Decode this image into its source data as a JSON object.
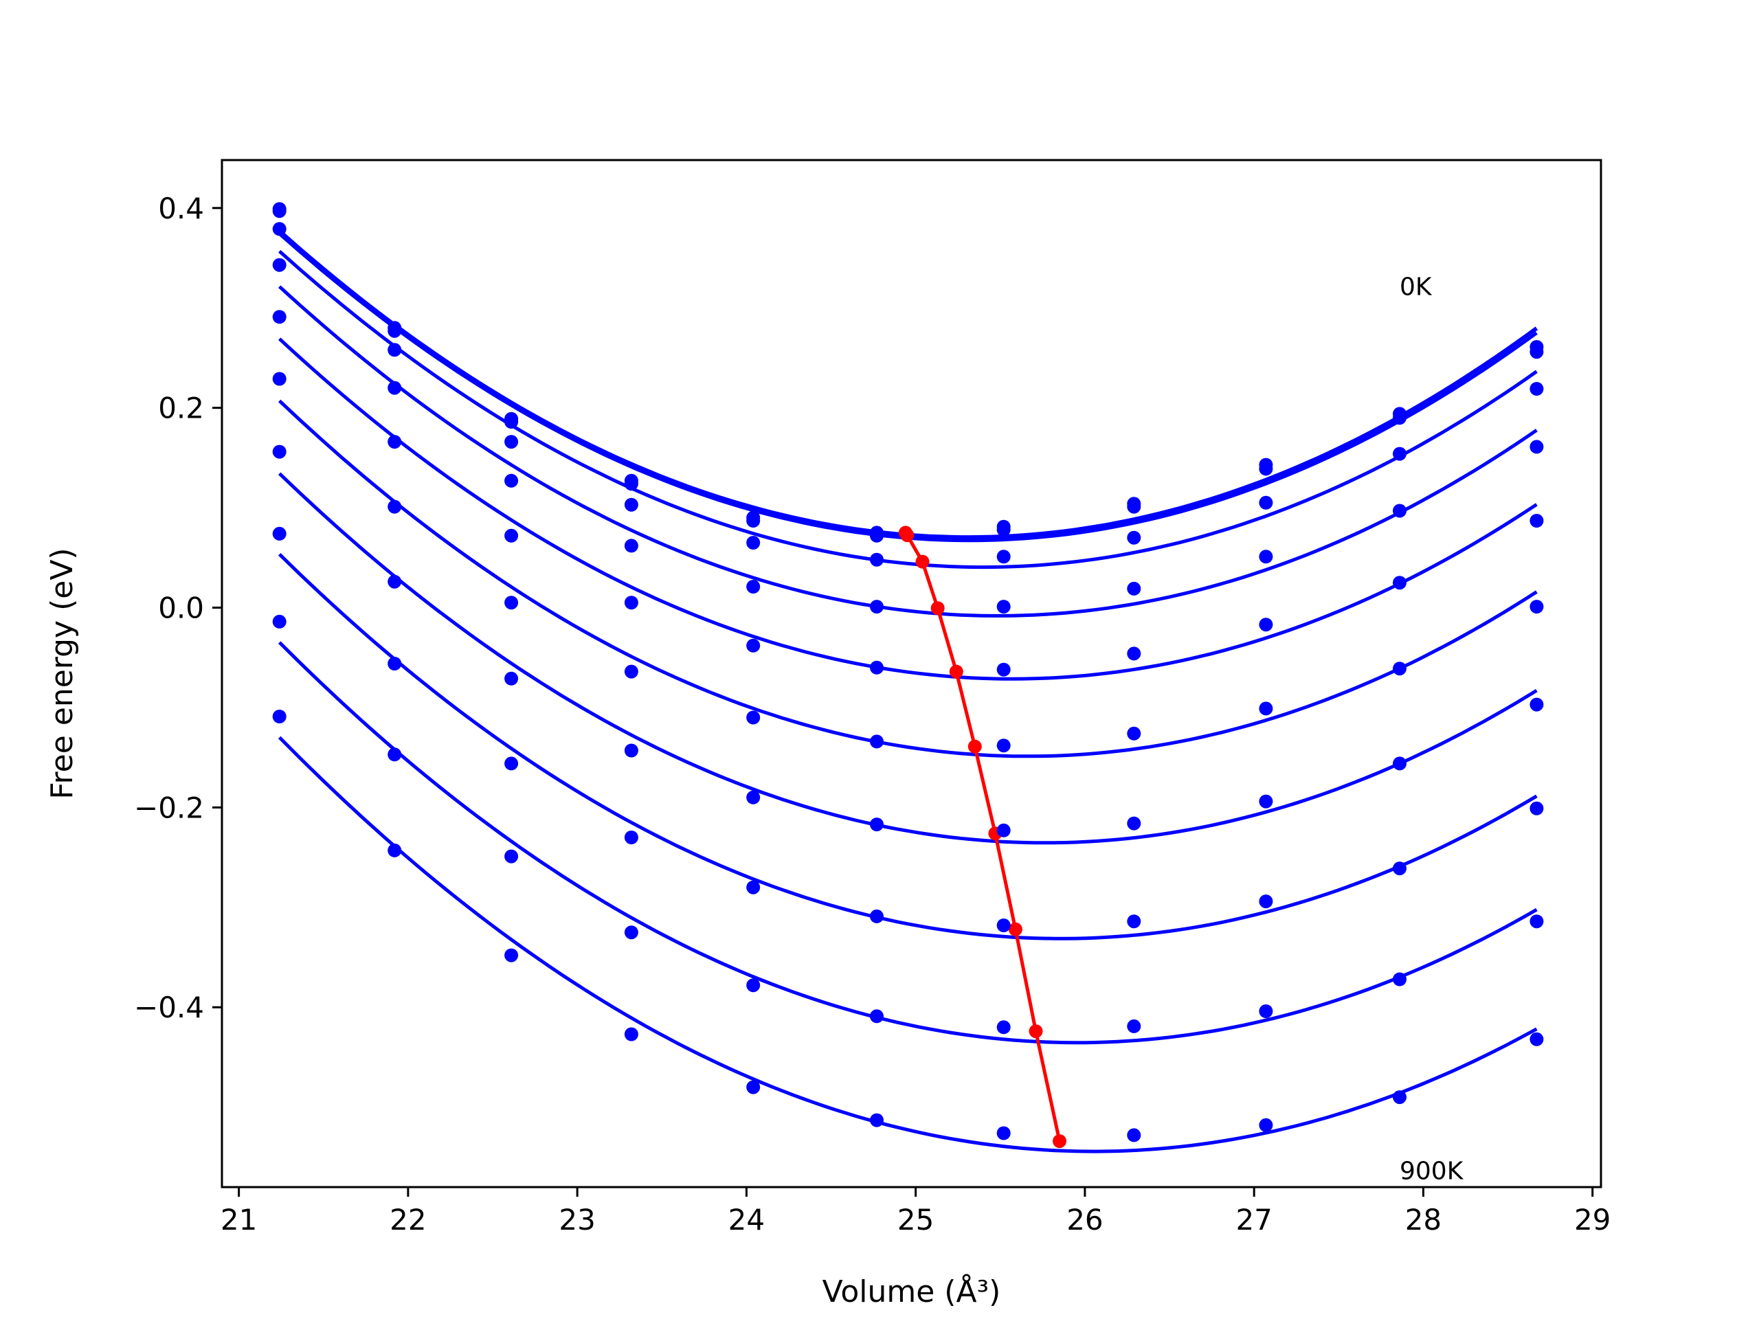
{
  "chart_data": {
    "type": "line",
    "xlabel": "Volume (Å³)",
    "ylabel": "Free energy (eV)",
    "xlim": [
      20.9,
      29.05
    ],
    "ylim": [
      -0.58,
      0.448
    ],
    "xticks": [
      21,
      22,
      23,
      24,
      25,
      26,
      27,
      28,
      29
    ],
    "yticks": [
      0.4,
      0.2,
      0.0,
      -0.2,
      -0.4
    ],
    "xtick_labels": [
      "21",
      "22",
      "23",
      "24",
      "25",
      "26",
      "27",
      "28",
      "29"
    ],
    "ytick_labels": [
      "0.4",
      "0.2",
      "0.0",
      "−0.2",
      "−0.4"
    ],
    "annotations": [
      {
        "text": "0K",
        "x": 27.86,
        "y": 0.313
      },
      {
        "text": "900K",
        "x": 27.86,
        "y": -0.572
      }
    ],
    "grid": false,
    "legend": "none",
    "colors": {
      "fit_curves": "#0000ff",
      "data_points": "#0000ff",
      "minimum_line": "#ff0000"
    },
    "points_x": [
      21.24,
      21.92,
      22.61,
      23.32,
      24.04,
      24.77,
      25.52,
      26.29,
      27.07,
      27.86,
      28.67
    ],
    "series": [
      {
        "values": [
          0.399,
          0.28,
          0.189,
          0.127,
          0.09,
          0.075,
          0.081,
          0.104,
          0.143,
          0.194,
          0.261
        ]
      },
      {
        "values": [
          0.397,
          0.277,
          0.186,
          0.124,
          0.087,
          0.072,
          0.078,
          0.101,
          0.139,
          0.19,
          0.256
        ]
      },
      {
        "values": [
          0.379,
          0.258,
          0.166,
          0.103,
          0.065,
          0.048,
          0.051,
          0.07,
          0.105,
          0.154,
          0.219
        ]
      },
      {
        "values": [
          0.343,
          0.22,
          0.127,
          0.062,
          0.021,
          0.001,
          0.001,
          0.019,
          0.051,
          0.097,
          0.161
        ]
      },
      {
        "values": [
          0.291,
          0.166,
          0.072,
          0.005,
          -0.038,
          -0.06,
          -0.062,
          -0.046,
          -0.017,
          0.025,
          0.087
        ]
      },
      {
        "values": [
          0.229,
          0.101,
          0.005,
          -0.064,
          -0.11,
          -0.134,
          -0.138,
          -0.126,
          -0.101,
          -0.061,
          0.001
        ]
      },
      {
        "values": [
          0.156,
          0.026,
          -0.071,
          -0.143,
          -0.19,
          -0.217,
          -0.223,
          -0.216,
          -0.194,
          -0.156,
          -0.097
        ]
      },
      {
        "values": [
          0.074,
          -0.056,
          -0.156,
          -0.23,
          -0.28,
          -0.309,
          -0.318,
          -0.314,
          -0.294,
          -0.261,
          -0.201
        ]
      },
      {
        "values": [
          -0.014,
          -0.147,
          -0.249,
          -0.325,
          -0.378,
          -0.409,
          -0.42,
          -0.419,
          -0.404,
          -0.372,
          -0.314
        ]
      },
      {
        "values": [
          -0.109,
          -0.243,
          -0.348,
          -0.427,
          -0.48,
          -0.513,
          -0.526,
          -0.528,
          -0.518,
          -0.49,
          -0.432
        ]
      }
    ],
    "minimum_line": {
      "x": [
        24.94,
        24.95,
        25.04,
        25.13,
        25.24,
        25.35,
        25.47,
        25.59,
        25.71,
        25.85
      ],
      "y": [
        0.075,
        0.0725,
        0.046,
        -0.0005,
        -0.064,
        -0.139,
        -0.226,
        -0.322,
        -0.424,
        -0.534
      ]
    }
  }
}
